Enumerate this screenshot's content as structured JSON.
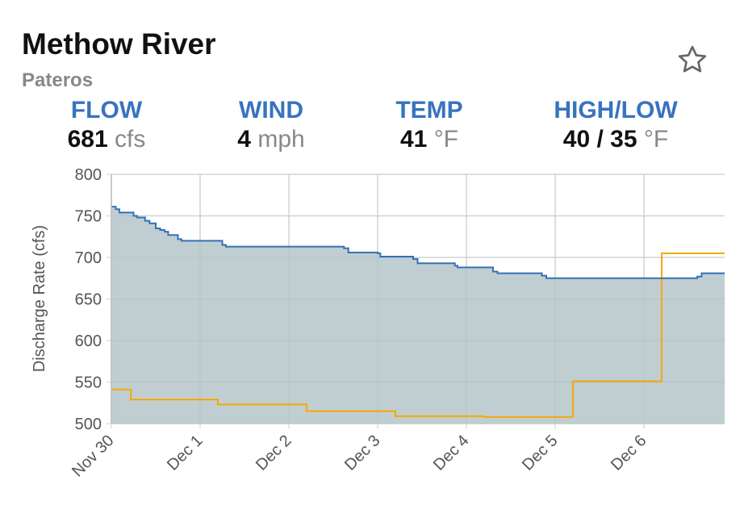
{
  "header": {
    "title": "Methow River",
    "subtitle": "Pateros"
  },
  "stats": [
    {
      "label": "FLOW",
      "value": "681",
      "unit": "cfs"
    },
    {
      "label": "WIND",
      "value": "4",
      "unit": "mph"
    },
    {
      "label": "TEMP",
      "value": "41",
      "unit": "°F"
    },
    {
      "label": "HIGH/LOW",
      "value": "40 / 35",
      "unit": "°F"
    }
  ],
  "icons": {
    "favorite": "star-outline-icon"
  },
  "colors": {
    "accent": "#3873be",
    "flow_line": "#3470b8",
    "area_fill": "#bdcbd0",
    "secondary_line": "#f5a800"
  },
  "chart_data": {
    "type": "area",
    "ylabel": "Discharge Rate (cfs)",
    "ylim": [
      500,
      800
    ],
    "yticks": [
      500,
      550,
      600,
      650,
      700,
      750,
      800
    ],
    "xticks": [
      "Nov 30",
      "Dec 1",
      "Dec 2",
      "Dec 3",
      "Dec 4",
      "Dec 5",
      "Dec 6"
    ],
    "xlim_days_from_nov30": [
      0,
      6.91
    ],
    "grid": true,
    "series": [
      {
        "style": "step-area",
        "color": "#3470b8",
        "points": [
          [
            0,
            761
          ],
          [
            0.05,
            758
          ],
          [
            0.09,
            754
          ],
          [
            0.25,
            750
          ],
          [
            0.29,
            748
          ],
          [
            0.38,
            744
          ],
          [
            0.43,
            741
          ],
          [
            0.5,
            735
          ],
          [
            0.55,
            733
          ],
          [
            0.6,
            731
          ],
          [
            0.64,
            727
          ],
          [
            0.75,
            722
          ],
          [
            0.79,
            720
          ],
          [
            1.25,
            715
          ],
          [
            1.29,
            713
          ],
          [
            2.62,
            711
          ],
          [
            2.67,
            706
          ],
          [
            3.0,
            705
          ],
          [
            3.03,
            701
          ],
          [
            3.4,
            698
          ],
          [
            3.45,
            693
          ],
          [
            3.87,
            690
          ],
          [
            3.9,
            688
          ],
          [
            4.3,
            683
          ],
          [
            4.35,
            681
          ],
          [
            4.85,
            678
          ],
          [
            4.9,
            675
          ],
          [
            6.6,
            677
          ],
          [
            6.65,
            681
          ],
          [
            6.91,
            681
          ]
        ]
      },
      {
        "style": "step-line",
        "color": "#f5a800",
        "points": [
          [
            0,
            541
          ],
          [
            0.22,
            529
          ],
          [
            1.2,
            523
          ],
          [
            2.2,
            515
          ],
          [
            3.2,
            509
          ],
          [
            4.2,
            508
          ],
          [
            5.2,
            551
          ],
          [
            6.2,
            705
          ],
          [
            6.91,
            705
          ]
        ]
      }
    ]
  }
}
